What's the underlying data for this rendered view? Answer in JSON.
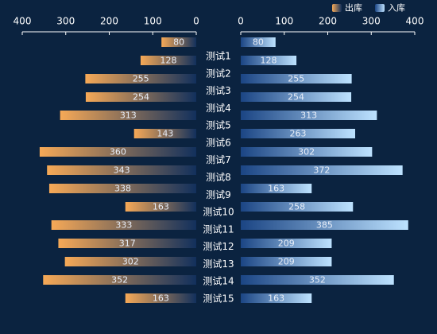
{
  "chart_data": {
    "type": "butterfly-bar",
    "categories": [
      "测试1",
      "测试2",
      "测试3",
      "测试4",
      "测试5",
      "测试6",
      "测试7",
      "测试8",
      "测试9",
      "测试10",
      "测试11",
      "测试12",
      "测试13",
      "测试14",
      "测试15"
    ],
    "series": [
      {
        "name": "出库",
        "side": "left",
        "color": [
          "#f6a957",
          "#12305c"
        ],
        "values": [
          80,
          128,
          255,
          254,
          313,
          143,
          360,
          343,
          338,
          163,
          333,
          317,
          302,
          352,
          163
        ]
      },
      {
        "name": "入库",
        "side": "right",
        "color": [
          "#1b4584",
          "#bde2ff"
        ],
        "values": [
          80,
          128,
          255,
          254,
          313,
          263,
          302,
          372,
          163,
          258,
          385,
          209,
          209,
          352,
          163
        ]
      }
    ],
    "xlim": [
      0,
      400
    ],
    "xticks": [
      0,
      100,
      200,
      300,
      400
    ]
  }
}
